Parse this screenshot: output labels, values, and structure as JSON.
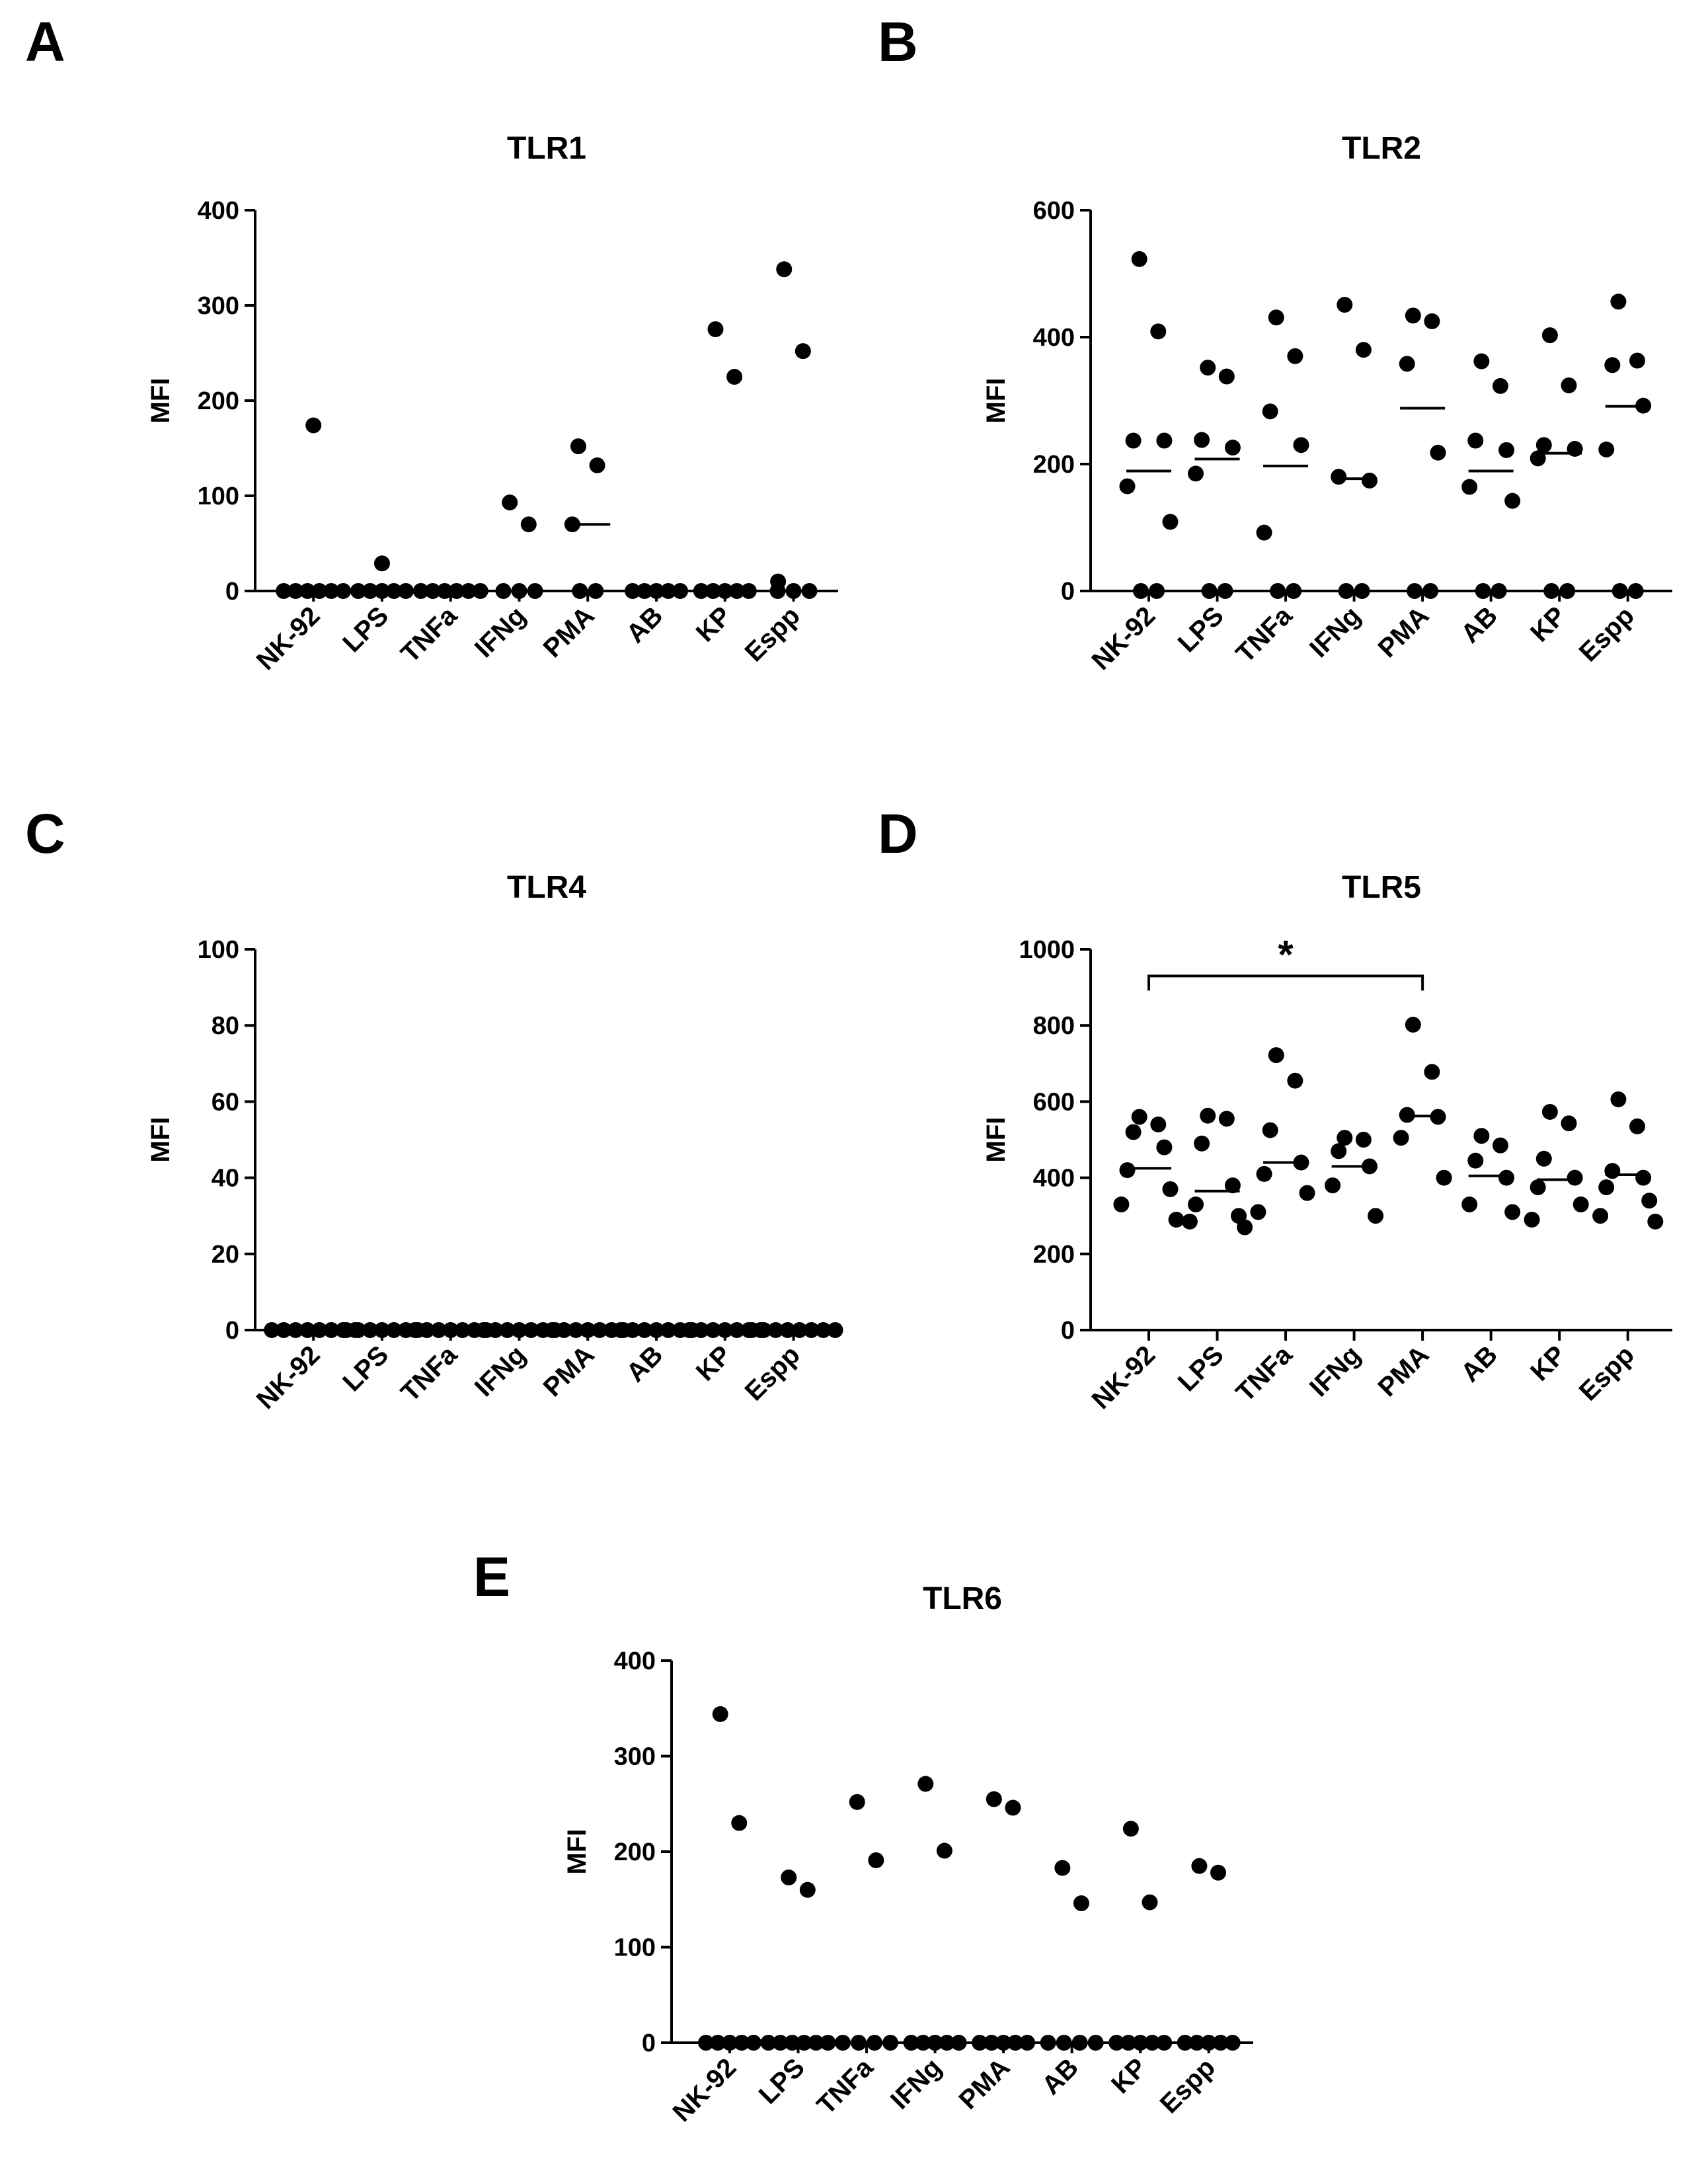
{
  "figure": {
    "panels": [
      "A",
      "B",
      "C",
      "D",
      "E"
    ]
  },
  "chart_data": [
    {
      "panel": "A",
      "type": "scatter",
      "title": "TLR1",
      "ylabel": "MFI",
      "xlabel": "",
      "ylim": [
        0,
        400
      ],
      "yticks": [
        0,
        100,
        200,
        300,
        400
      ],
      "categories": [
        "NK-92",
        "LPS",
        "TNFa",
        "IFNg",
        "PMA",
        "AB",
        "KP",
        "Espp"
      ],
      "series": [
        {
          "name": "NK-92",
          "values": [
            174,
            0,
            0,
            0,
            0,
            0,
            0
          ]
        },
        {
          "name": "LPS",
          "values": [
            29,
            0,
            0,
            0,
            0,
            0
          ]
        },
        {
          "name": "TNFa",
          "values": [
            0,
            0,
            0,
            0,
            0,
            0
          ]
        },
        {
          "name": "IFNg",
          "values": [
            93,
            70,
            0,
            0,
            0
          ]
        },
        {
          "name": "PMA",
          "values": [
            152,
            132,
            70,
            0,
            0
          ]
        },
        {
          "name": "AB",
          "values": [
            0,
            0,
            0,
            0,
            0
          ]
        },
        {
          "name": "KP",
          "values": [
            275,
            225,
            0,
            0,
            0,
            0,
            0
          ]
        },
        {
          "name": "Espp",
          "values": [
            338,
            252,
            10,
            0,
            0,
            0
          ]
        }
      ],
      "medians": [
        null,
        null,
        null,
        null,
        70,
        null,
        null,
        null
      ],
      "significance": []
    },
    {
      "panel": "B",
      "type": "scatter",
      "title": "TLR2",
      "ylabel": "MFI",
      "xlabel": "",
      "ylim": [
        0,
        600
      ],
      "yticks": [
        0,
        200,
        400,
        600
      ],
      "categories": [
        "NK-92",
        "LPS",
        "TNFa",
        "IFNg",
        "PMA",
        "AB",
        "KP",
        "Espp"
      ],
      "series": [
        {
          "name": "NK-92",
          "values": [
            523,
            409,
            237,
            237,
            165,
            109,
            0,
            0
          ]
        },
        {
          "name": "LPS",
          "values": [
            352,
            338,
            238,
            226,
            185,
            0,
            0
          ]
        },
        {
          "name": "TNFa",
          "values": [
            431,
            370,
            283,
            230,
            92,
            0,
            0
          ]
        },
        {
          "name": "IFNg",
          "values": [
            451,
            380,
            180,
            174,
            0,
            0
          ]
        },
        {
          "name": "PMA",
          "values": [
            434,
            425,
            358,
            218,
            0,
            0
          ]
        },
        {
          "name": "AB",
          "values": [
            362,
            323,
            237,
            222,
            164,
            142,
            0,
            0
          ]
        },
        {
          "name": "KP",
          "values": [
            403,
            324,
            230,
            224,
            209,
            0,
            0
          ]
        },
        {
          "name": "Espp",
          "values": [
            456,
            363,
            356,
            292,
            223,
            0,
            0
          ]
        }
      ],
      "medians": [
        189,
        208,
        197,
        177,
        288,
        189,
        217,
        291
      ],
      "significance": []
    },
    {
      "panel": "C",
      "type": "scatter",
      "title": "TLR4",
      "ylabel": "MFI",
      "xlabel": "",
      "ylim": [
        0,
        100
      ],
      "yticks": [
        0,
        20,
        40,
        60,
        80,
        100
      ],
      "categories": [
        "NK-92",
        "LPS",
        "TNFa",
        "IFNg",
        "PMA",
        "AB",
        "KP",
        "Espp"
      ],
      "series": [
        {
          "name": "NK-92",
          "values": [
            0,
            0,
            0,
            0,
            0,
            0,
            0,
            0
          ]
        },
        {
          "name": "LPS",
          "values": [
            0,
            0,
            0,
            0,
            0,
            0,
            0
          ]
        },
        {
          "name": "TNFa",
          "values": [
            0,
            0,
            0,
            0,
            0,
            0,
            0
          ]
        },
        {
          "name": "IFNg",
          "values": [
            0,
            0,
            0,
            0,
            0,
            0,
            0
          ]
        },
        {
          "name": "PMA",
          "values": [
            0,
            0,
            0,
            0,
            0,
            0,
            0
          ]
        },
        {
          "name": "AB",
          "values": [
            0,
            0,
            0,
            0,
            0,
            0,
            0
          ]
        },
        {
          "name": "KP",
          "values": [
            0,
            0,
            0,
            0,
            0,
            0,
            0
          ]
        },
        {
          "name": "Espp",
          "values": [
            0,
            0,
            0,
            0,
            0,
            0,
            0,
            0
          ]
        }
      ],
      "medians": [
        null,
        null,
        null,
        null,
        null,
        null,
        null,
        null
      ],
      "significance": []
    },
    {
      "panel": "D",
      "type": "scatter",
      "title": "TLR5",
      "ylabel": "MFI",
      "xlabel": "",
      "ylim": [
        0,
        1000
      ],
      "yticks": [
        0,
        200,
        400,
        600,
        800,
        1000
      ],
      "categories": [
        "NK-92",
        "LPS",
        "TNFa",
        "IFNg",
        "PMA",
        "AB",
        "KP",
        "Espp"
      ],
      "series": [
        {
          "name": "NK-92",
          "values": [
            560,
            540,
            520,
            480,
            420,
            370,
            330,
            290
          ]
        },
        {
          "name": "LPS",
          "values": [
            563,
            555,
            490,
            380,
            330,
            300,
            285,
            270
          ]
        },
        {
          "name": "TNFa",
          "values": [
            722,
            655,
            525,
            440,
            410,
            360,
            310
          ]
        },
        {
          "name": "IFNg",
          "values": [
            505,
            500,
            470,
            430,
            380,
            300
          ]
        },
        {
          "name": "PMA",
          "values": [
            802,
            678,
            565,
            560,
            505,
            400
          ]
        },
        {
          "name": "AB",
          "values": [
            510,
            485,
            445,
            400,
            330,
            310
          ]
        },
        {
          "name": "KP",
          "values": [
            573,
            543,
            450,
            400,
            375,
            330,
            290
          ]
        },
        {
          "name": "Espp",
          "values": [
            606,
            535,
            418,
            400,
            375,
            340,
            300,
            285
          ]
        }
      ],
      "medians": [
        425,
        365,
        440,
        430,
        562,
        405,
        395,
        408
      ],
      "significance": [
        {
          "from": "NK-92",
          "to": "PMA",
          "label": "*",
          "y": 930
        }
      ]
    },
    {
      "panel": "E",
      "type": "scatter",
      "title": "TLR6",
      "ylabel": "MFI",
      "xlabel": "",
      "ylim": [
        0,
        400
      ],
      "yticks": [
        0,
        100,
        200,
        300,
        400
      ],
      "categories": [
        "NK-92",
        "LPS",
        "TNFa",
        "IFNg",
        "PMA",
        "AB",
        "KP",
        "Espp"
      ],
      "series": [
        {
          "name": "NK-92",
          "values": [
            344,
            230,
            0,
            0,
            0,
            0,
            0
          ]
        },
        {
          "name": "LPS",
          "values": [
            173,
            160,
            0,
            0,
            0,
            0,
            0,
            0
          ]
        },
        {
          "name": "TNFa",
          "values": [
            252,
            191,
            0,
            0,
            0,
            0
          ]
        },
        {
          "name": "IFNg",
          "values": [
            271,
            201,
            0,
            0,
            0,
            0,
            0
          ]
        },
        {
          "name": "PMA",
          "values": [
            255,
            246,
            0,
            0,
            0,
            0,
            0
          ]
        },
        {
          "name": "AB",
          "values": [
            183,
            146,
            0,
            0,
            0,
            0
          ]
        },
        {
          "name": "KP",
          "values": [
            224,
            147,
            0,
            0,
            0,
            0,
            0
          ]
        },
        {
          "name": "Espp",
          "values": [
            185,
            178,
            0,
            0,
            0,
            0,
            0
          ]
        }
      ],
      "medians": [
        null,
        null,
        null,
        null,
        null,
        null,
        null,
        null
      ],
      "significance": []
    }
  ]
}
